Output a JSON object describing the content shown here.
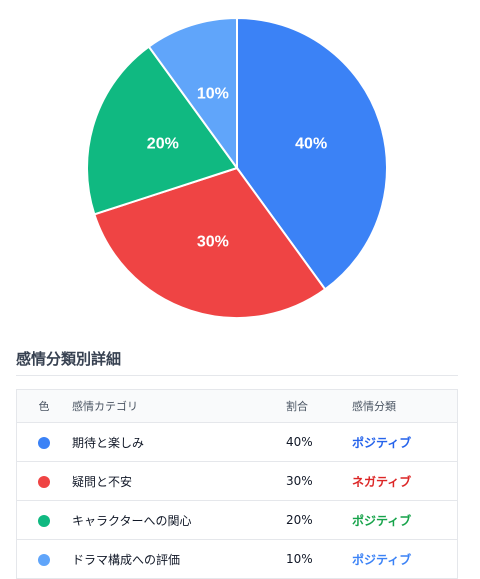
{
  "chart_data": {
    "type": "pie",
    "slices": [
      {
        "label": "期待と楽しみ",
        "value": 40,
        "color": "#3b82f6"
      },
      {
        "label": "疑問と不安",
        "value": 30,
        "color": "#ef4444"
      },
      {
        "label": "キャラクターへの関心",
        "value": 20,
        "color": "#10b981"
      },
      {
        "label": "ドラマ構成への評価",
        "value": 10,
        "color": "#60a5fa"
      }
    ],
    "data_labels": [
      "40%",
      "30%",
      "20%",
      "10%"
    ]
  },
  "section": {
    "title": "感情分類別詳細"
  },
  "table": {
    "headers": {
      "color": "色",
      "category": "感情カテゴリ",
      "ratio": "割合",
      "classification": "感情分類"
    },
    "rows": [
      {
        "color": "#3b82f6",
        "category": "期待と楽しみ",
        "ratio": "40%",
        "classification": "ポジティブ",
        "class_color": "#2563eb"
      },
      {
        "color": "#ef4444",
        "category": "疑問と不安",
        "ratio": "30%",
        "classification": "ネガティブ",
        "class_color": "#dc2626"
      },
      {
        "color": "#10b981",
        "category": "キャラクターへの関心",
        "ratio": "20%",
        "classification": "ポジティブ",
        "class_color": "#16a34a"
      },
      {
        "color": "#60a5fa",
        "category": "ドラマ構成への評価",
        "ratio": "10%",
        "classification": "ポジティブ",
        "class_color": "#3b82f6"
      }
    ]
  }
}
